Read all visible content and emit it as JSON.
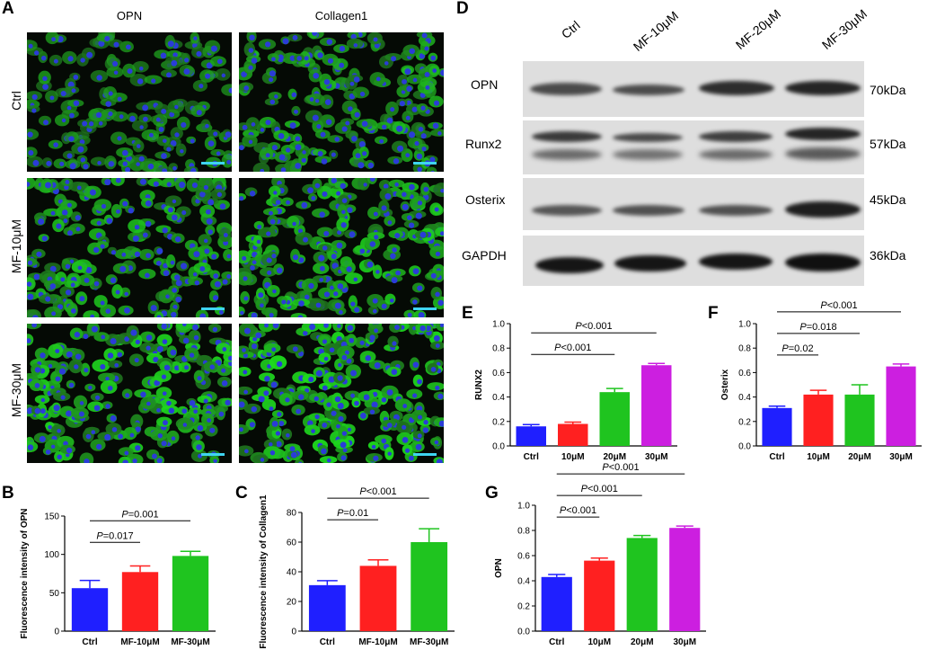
{
  "panel_letters": {
    "A": "A",
    "B": "B",
    "C": "C",
    "D": "D",
    "E": "E",
    "F": "F",
    "G": "G"
  },
  "micrographs": {
    "columns": [
      "OPN",
      "Collagen1"
    ],
    "rows": [
      "Ctrl",
      "MF-10μM",
      "MF-30μM"
    ]
  },
  "western_blot": {
    "lanes": [
      "Ctrl",
      "MF-10μM",
      "MF-20μM",
      "MF-30μM"
    ],
    "proteins": [
      {
        "name": "OPN",
        "size": "70kDa"
      },
      {
        "name": "Runx2",
        "size": "57kDa"
      },
      {
        "name": "Osterix",
        "size": "45kDa"
      },
      {
        "name": "GAPDH",
        "size": "36kDa"
      }
    ]
  },
  "colors": {
    "blue": "#1f1fff",
    "red": "#ff2020",
    "green": "#1fc41f",
    "magenta": "#cc1fe0",
    "scalebar": "#3fd4f0"
  },
  "chart_data": [
    {
      "id": "B",
      "type": "bar",
      "categories": [
        "Ctrl",
        "MF-10μM",
        "MF-30μM"
      ],
      "values": [
        56,
        77,
        98
      ],
      "errors": [
        10,
        8,
        6
      ],
      "colors": [
        "#1f1fff",
        "#ff2020",
        "#1fc41f"
      ],
      "ylabel": "Fluorescence intensity of OPN",
      "ylim": [
        0,
        150
      ],
      "yticks": [
        0,
        50,
        100,
        150
      ],
      "comparisons": [
        {
          "from": 0,
          "to": 1,
          "label": "=0.017",
          "level": 1
        },
        {
          "from": 0,
          "to": 2,
          "label": "=0.001",
          "level": 2
        }
      ]
    },
    {
      "id": "C",
      "type": "bar",
      "categories": [
        "Ctrl",
        "MF-10μM",
        "MF-30μM"
      ],
      "values": [
        31,
        44,
        60
      ],
      "errors": [
        3,
        4,
        9
      ],
      "colors": [
        "#1f1fff",
        "#ff2020",
        "#1fc41f"
      ],
      "ylabel": "Fluorescence intensity of Collagen1",
      "ylim": [
        0,
        80
      ],
      "yticks": [
        0,
        20,
        40,
        60,
        80
      ],
      "comparisons": [
        {
          "from": 0,
          "to": 1,
          "label": "=0.01",
          "level": 1
        },
        {
          "from": 0,
          "to": 2,
          "label": "<0.001",
          "level": 2
        }
      ]
    },
    {
      "id": "E",
      "type": "bar",
      "categories": [
        "Ctrl",
        "10μM",
        "20μM",
        "30μM"
      ],
      "values": [
        0.16,
        0.18,
        0.44,
        0.66
      ],
      "errors": [
        0.015,
        0.015,
        0.03,
        0.015
      ],
      "colors": [
        "#1f1fff",
        "#ff2020",
        "#1fc41f",
        "#cc1fe0"
      ],
      "ylabel": "RUNX2",
      "ylim": [
        0,
        1.0
      ],
      "yticks": [
        0.0,
        0.2,
        0.4,
        0.6,
        0.8,
        1.0
      ],
      "comparisons": [
        {
          "from": 0,
          "to": 2,
          "label": "<0.001",
          "level": 1
        },
        {
          "from": 0,
          "to": 3,
          "label": "<0.001",
          "level": 2
        }
      ]
    },
    {
      "id": "F",
      "type": "bar",
      "categories": [
        "Ctrl",
        "10μM",
        "20μM",
        "30μM"
      ],
      "values": [
        0.31,
        0.42,
        0.42,
        0.65
      ],
      "errors": [
        0.015,
        0.035,
        0.08,
        0.02
      ],
      "colors": [
        "#1f1fff",
        "#ff2020",
        "#1fc41f",
        "#cc1fe0"
      ],
      "ylabel": "Osterix",
      "ylim": [
        0,
        1.0
      ],
      "yticks": [
        0.0,
        0.2,
        0.4,
        0.6,
        0.8,
        1.0
      ],
      "comparisons": [
        {
          "from": 0,
          "to": 1,
          "label": "=0.02",
          "level": 1
        },
        {
          "from": 0,
          "to": 2,
          "label": "=0.018",
          "level": 2
        },
        {
          "from": 0,
          "to": 3,
          "label": "<0.001",
          "level": 3
        }
      ]
    },
    {
      "id": "G",
      "type": "bar",
      "categories": [
        "Ctrl",
        "10μM",
        "20μM",
        "30μM"
      ],
      "values": [
        0.43,
        0.56,
        0.74,
        0.82
      ],
      "errors": [
        0.02,
        0.02,
        0.02,
        0.015
      ],
      "colors": [
        "#1f1fff",
        "#ff2020",
        "#1fc41f",
        "#cc1fe0"
      ],
      "ylabel": "OPN",
      "ylim": [
        0,
        1.0
      ],
      "yticks": [
        0.0,
        0.2,
        0.4,
        0.6,
        0.8,
        1.0
      ],
      "comparisons": [
        {
          "from": 0,
          "to": 1,
          "label": "<0.001",
          "level": 1
        },
        {
          "from": 0,
          "to": 2,
          "label": "<0.001",
          "level": 2
        },
        {
          "from": 0,
          "to": 3,
          "label": "<0.001",
          "level": 3
        }
      ]
    }
  ]
}
